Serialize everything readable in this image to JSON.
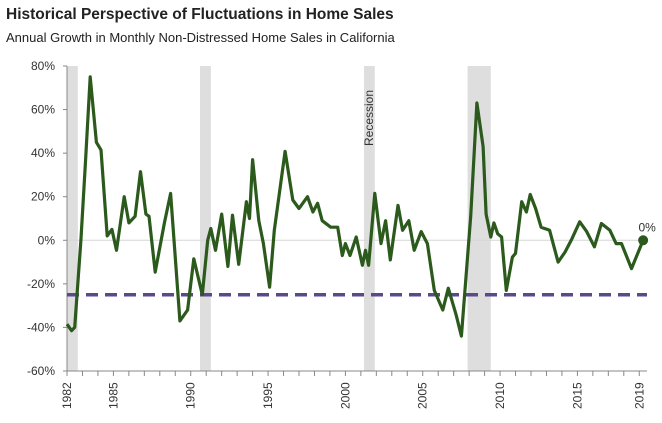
{
  "chart_data": {
    "type": "line",
    "title": "Historical Perspective of Fluctuations in Home Sales",
    "subtitle": "Annual Growth  in Monthly Non-Distressed Home  Sales in California",
    "xlabel": "",
    "ylabel": "",
    "xlim": [
      1982,
      2019.5
    ],
    "ylim": [
      -60,
      80
    ],
    "y_ticks": [
      -60,
      -40,
      -20,
      0,
      20,
      40,
      60,
      80
    ],
    "y_tick_labels": [
      "-60%",
      "-40%",
      "-20%",
      "0%",
      "20%",
      "40%",
      "60%",
      "80%"
    ],
    "x_ticks": [
      1982,
      1985,
      1990,
      1995,
      2000,
      2005,
      2010,
      2015,
      2019
    ],
    "x_tick_labels": [
      "1982",
      "1985",
      "1990",
      "1995",
      "2000",
      "2005",
      "2010",
      "2015",
      "2019"
    ],
    "grid": false,
    "colors": {
      "line": "#2b5a1c",
      "threshold": "#5a4a8c",
      "recession": "#dedede",
      "zero_line": "#d6d6d6"
    },
    "recession_label": "Recession",
    "recessions": [
      [
        1982.0,
        1982.7
      ],
      [
        1990.6,
        1991.3
      ],
      [
        2001.2,
        2001.9
      ],
      [
        2007.9,
        2009.4
      ]
    ],
    "threshold_value": -25,
    "end_label": "0%",
    "series": [
      {
        "x": [
          1982.0,
          1982.3,
          1982.5,
          1982.9,
          1983.2,
          1983.5,
          1983.9,
          1984.2,
          1984.6,
          1984.9,
          1985.2,
          1985.7,
          1986.0,
          1986.4,
          1986.75,
          1987.1,
          1987.3,
          1987.7,
          1988.3,
          1988.7,
          1989.3,
          1989.8,
          1990.2,
          1990.75,
          1991.1,
          1991.3,
          1991.6,
          1992.0,
          1992.4,
          1992.7,
          1993.1,
          1993.6,
          1993.8,
          1994.0,
          1994.4,
          1994.7,
          1995.1,
          1995.4,
          1996.1,
          1996.6,
          1997.0,
          1997.55,
          1997.9,
          1998.2,
          1998.5,
          1999.05,
          1999.5,
          1999.8,
          2000.0,
          2000.3,
          2000.7,
          2001.1,
          2001.3,
          2001.5,
          2001.9,
          2002.3,
          2002.6,
          2002.9,
          2003.4,
          2003.7,
          2004.1,
          2004.45,
          2004.9,
          2005.3,
          2005.75,
          2006.3,
          2006.65,
          2007.15,
          2007.5,
          2008.1,
          2008.5,
          2008.9,
          2009.1,
          2009.4,
          2009.6,
          2009.85,
          2010.1,
          2010.4,
          2010.8,
          2011.0,
          2011.4,
          2011.7,
          2011.95,
          2012.3,
          2012.65,
          2013.2,
          2013.75,
          2014.2,
          2014.6,
          2015.15,
          2015.6,
          2016.1,
          2016.55,
          2017.1,
          2017.5,
          2017.85,
          2018.5,
          2019.25
        ],
        "y": [
          -38.5,
          -41.5,
          -40,
          0,
          37,
          75,
          45,
          41.5,
          2,
          5,
          -4.6,
          20,
          8,
          11,
          31.5,
          12,
          11,
          -14.6,
          8,
          21.5,
          -37,
          -32,
          -8.5,
          -25,
          0,
          5.4,
          -4.6,
          12,
          -12,
          11.5,
          -11,
          17.7,
          10,
          37,
          9,
          -1.5,
          -21.5,
          4.6,
          40.8,
          18.5,
          14.6,
          20,
          13,
          17,
          9,
          6,
          6,
          -7,
          -1.5,
          -7,
          1.5,
          -11.5,
          -4.6,
          -11.5,
          21.5,
          -1.5,
          9,
          -9,
          16,
          4.6,
          9,
          -4.6,
          4,
          -1.5,
          -23,
          -32,
          -22,
          -34,
          -44,
          11,
          63,
          43,
          12,
          1.5,
          8,
          3,
          1.5,
          -23,
          -7.7,
          -6,
          17.7,
          13,
          21,
          14.6,
          6,
          4.6,
          -10,
          -5.4,
          0,
          8.5,
          4,
          -3,
          7.7,
          4.6,
          -1.5,
          -1.5,
          -13,
          0
        ]
      }
    ]
  }
}
